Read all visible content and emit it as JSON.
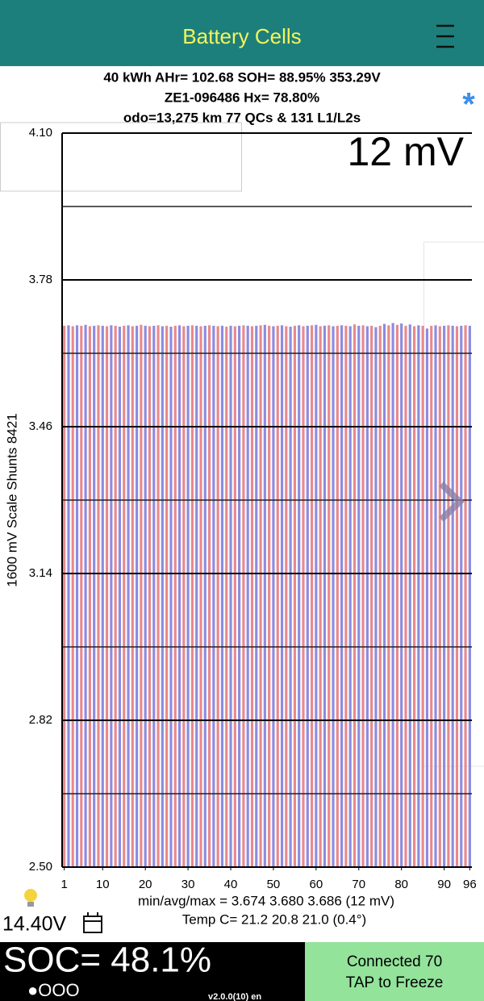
{
  "header": {
    "title": "Battery Cells"
  },
  "info": {
    "line1": "40 kWh  AHr= 102.68  SOH= 88.95%   353.29V",
    "line2": "ZE1-096486   Hx= 78.80%",
    "line3": "odo=13,275 km 77 QCs & 131 L1/L2s"
  },
  "chart_data": {
    "type": "bar",
    "spread_label": "12 mV",
    "ylabel": "1600 mV Scale   Shunts 8421",
    "x": [
      1,
      2,
      3,
      4,
      5,
      6,
      7,
      8,
      9,
      10,
      11,
      12,
      13,
      14,
      15,
      16,
      17,
      18,
      19,
      20,
      21,
      22,
      23,
      24,
      25,
      26,
      27,
      28,
      29,
      30,
      31,
      32,
      33,
      34,
      35,
      36,
      37,
      38,
      39,
      40,
      41,
      42,
      43,
      44,
      45,
      46,
      47,
      48,
      49,
      50,
      51,
      52,
      53,
      54,
      55,
      56,
      57,
      58,
      59,
      60,
      61,
      62,
      63,
      64,
      65,
      66,
      67,
      68,
      69,
      70,
      71,
      72,
      73,
      74,
      75,
      76,
      77,
      78,
      79,
      80,
      81,
      82,
      83,
      84,
      85,
      86,
      87,
      88,
      89,
      90,
      91,
      92,
      93,
      94,
      95,
      96
    ],
    "values": [
      3.68,
      3.681,
      3.679,
      3.681,
      3.68,
      3.682,
      3.679,
      3.68,
      3.681,
      3.68,
      3.679,
      3.681,
      3.68,
      3.678,
      3.68,
      3.681,
      3.679,
      3.68,
      3.682,
      3.68,
      3.679,
      3.68,
      3.681,
      3.679,
      3.68,
      3.678,
      3.68,
      3.681,
      3.679,
      3.68,
      3.681,
      3.68,
      3.679,
      3.68,
      3.681,
      3.68,
      3.679,
      3.68,
      3.678,
      3.68,
      3.679,
      3.68,
      3.681,
      3.68,
      3.679,
      3.68,
      3.681,
      3.682,
      3.68,
      3.679,
      3.68,
      3.681,
      3.679,
      3.678,
      3.68,
      3.681,
      3.679,
      3.68,
      3.681,
      3.682,
      3.679,
      3.68,
      3.681,
      3.679,
      3.68,
      3.681,
      3.68,
      3.679,
      3.683,
      3.68,
      3.681,
      3.679,
      3.68,
      3.677,
      3.68,
      3.684,
      3.681,
      3.686,
      3.682,
      3.685,
      3.68,
      3.683,
      3.679,
      3.681,
      3.68,
      3.674,
      3.68,
      3.681,
      3.679,
      3.68,
      3.681,
      3.68,
      3.679,
      3.68,
      3.681,
      3.68
    ],
    "colors": [
      "#e8898c",
      "#8c8ce0"
    ],
    "xlim": [
      0.5,
      96.5
    ],
    "xticks": [
      1,
      10,
      20,
      30,
      40,
      50,
      60,
      70,
      80,
      90,
      96
    ],
    "ylim": [
      2.5,
      4.1
    ],
    "yticks": [
      {
        "value": 4.1,
        "label": "4.10"
      },
      3.78,
      3.46,
      3.14,
      2.82,
      {
        "value": 2.5,
        "label": "2.50"
      }
    ],
    "minor_yticks": [
      3.94,
      3.62,
      3.3,
      2.98,
      2.66
    ],
    "grid": true,
    "stats": "min/avg/max = 3.674 3.680 3.686  (12 mV)",
    "temps": "Temp C= 21.2  20.8  21.0  (0.4°)"
  },
  "footer": {
    "voltage": "14.40V",
    "soc": "SOC= 48.1%",
    "pages": "●OOO",
    "version": "v2.0.0(10) en",
    "status1": "Connected 70",
    "status2": "TAP to Freeze"
  }
}
